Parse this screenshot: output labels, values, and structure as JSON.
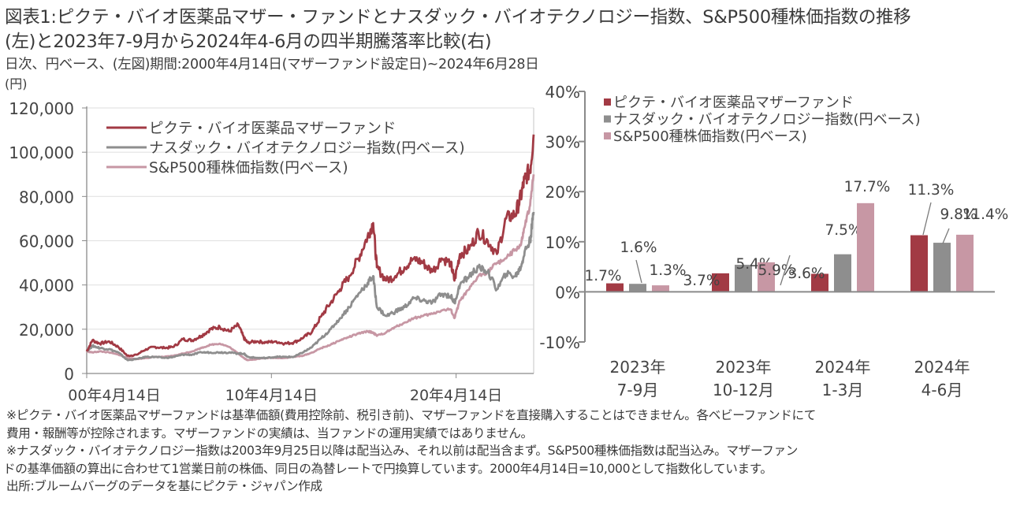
{
  "header": {
    "title_line1": "図表1:ピクテ・バイオ医薬品マザー・ファンドとナスダック・バイオテクノロジー指数、S&P500種株価指数の推移",
    "title_line2": "(左)と2023年7-9月から2024年4-6月の四半期騰落率比較(右)",
    "subtitle": "日次、円ベース、(左図)期間:2000年4月14日(マザーファンド設定日)~2024年6月28日",
    "left_unit": "(円)"
  },
  "colors": {
    "fund": "#a23a44",
    "nasdaq_bio": "#8e8e8e",
    "sp500": "#c797a4",
    "axis": "#8a8a8a",
    "grid": "#e3e3e3"
  },
  "chart_data": [
    {
      "type": "line",
      "title": "",
      "xlabel": "",
      "ylabel": "(円)",
      "ylim": [
        0,
        120000
      ],
      "yticks": [
        0,
        20000,
        40000,
        60000,
        80000,
        100000,
        120000
      ],
      "ytick_labels": [
        "0",
        "20,000",
        "40,000",
        "60,000",
        "80,000",
        "100,000",
        "120,000"
      ],
      "xlim": [
        2000.29,
        2024.49
      ],
      "xticks": [
        2000.29,
        2010.29,
        2020.29
      ],
      "xtick_labels": [
        "00年4月14日",
        "10年4月14日",
        "20年4月14日"
      ],
      "grid": true,
      "legend_position": "top-left",
      "x": [
        2000.29,
        2000.6,
        2001.0,
        2001.5,
        2002.0,
        2002.5,
        2003.0,
        2003.5,
        2004.0,
        2004.5,
        2005.0,
        2005.5,
        2006.0,
        2006.5,
        2007.0,
        2007.5,
        2008.0,
        2008.5,
        2008.8,
        2009.0,
        2009.5,
        2010.0,
        2010.5,
        2011.0,
        2011.5,
        2012.0,
        2012.5,
        2013.0,
        2013.5,
        2014.0,
        2014.5,
        2015.0,
        2015.5,
        2015.8,
        2016.0,
        2016.5,
        2017.0,
        2017.5,
        2018.0,
        2018.5,
        2019.0,
        2019.5,
        2020.0,
        2020.2,
        2020.5,
        2021.0,
        2021.5,
        2022.0,
        2022.5,
        2023.0,
        2023.5,
        2023.8,
        2024.0,
        2024.3,
        2024.49
      ],
      "series": [
        {
          "name": "ピクテ・バイオ医薬品マザーファンド",
          "color": "#a23a44",
          "values": [
            10000,
            15000,
            13500,
            14500,
            12000,
            8000,
            8500,
            11000,
            12000,
            11500,
            12000,
            15500,
            15000,
            17000,
            20000,
            21000,
            19000,
            22000,
            16000,
            14000,
            14500,
            14000,
            14500,
            13500,
            14000,
            16000,
            19000,
            26000,
            32000,
            38000,
            44000,
            52000,
            62000,
            68000,
            48000,
            42000,
            44000,
            48000,
            52000,
            50000,
            46000,
            52000,
            50000,
            42000,
            54000,
            56000,
            64000,
            60000,
            54000,
            70000,
            72000,
            80000,
            88000,
            92000,
            108000
          ]
        },
        {
          "name": "ナスダック・バイオテクノロジー指数(円ベース)",
          "color": "#8e8e8e",
          "values": [
            10000,
            12500,
            11500,
            11000,
            9500,
            6000,
            6500,
            7500,
            7500,
            7000,
            7500,
            8500,
            8500,
            9500,
            9500,
            9500,
            9500,
            9000,
            9000,
            7500,
            7000,
            7000,
            7500,
            7500,
            7500,
            9500,
            12000,
            16000,
            20000,
            25000,
            30000,
            36000,
            41000,
            44000,
            30000,
            26000,
            28000,
            30000,
            34000,
            33000,
            32000,
            36000,
            35000,
            32000,
            40000,
            44000,
            48000,
            46000,
            38000,
            45000,
            44000,
            48000,
            55000,
            60000,
            73000
          ]
        },
        {
          "name": "S&P500種株価指数(円ベース)",
          "color": "#c797a4",
          "values": [
            10000,
            9500,
            10000,
            9500,
            8500,
            7000,
            6500,
            7000,
            7500,
            7500,
            8000,
            9000,
            10000,
            11500,
            13000,
            13500,
            12000,
            9000,
            7000,
            6000,
            6500,
            7000,
            7000,
            7000,
            7500,
            8000,
            9500,
            11500,
            13000,
            15000,
            16500,
            18000,
            19000,
            18500,
            17000,
            18500,
            21000,
            23000,
            25000,
            26000,
            27000,
            28500,
            29000,
            25000,
            33000,
            38000,
            44000,
            46000,
            50000,
            52000,
            56000,
            58000,
            66000,
            76000,
            90000
          ]
        }
      ]
    },
    {
      "type": "bar",
      "title": "",
      "xlabel": "",
      "ylabel": "",
      "ylim": [
        -10,
        40
      ],
      "yticks": [
        -10,
        0,
        10,
        20,
        30,
        40
      ],
      "ytick_labels": [
        "-10%",
        "0%",
        "10%",
        "20%",
        "30%",
        "40%"
      ],
      "categories": [
        "2023年\n7-9月",
        "2023年\n10-12月",
        "2024年\n1-3月",
        "2024年\n4-6月"
      ],
      "category_lines": [
        [
          "2023年",
          "7-9月"
        ],
        [
          "2023年",
          "10-12月"
        ],
        [
          "2024年",
          "1-3月"
        ],
        [
          "2024年",
          "4-6月"
        ]
      ],
      "grid": false,
      "legend_position": "top-left",
      "series": [
        {
          "name": "ピクテ・バイオ医薬品マザーファンド",
          "color": "#a23a44",
          "values": [
            1.7,
            3.7,
            3.6,
            11.3
          ],
          "labels": [
            "1.7%",
            "3.7%",
            "3.6%",
            "11.3%"
          ]
        },
        {
          "name": "ナスダック・バイオテクノロジー指数(円ベース)",
          "color": "#8e8e8e",
          "values": [
            1.6,
            5.4,
            7.5,
            9.8
          ],
          "labels": [
            "1.6%",
            "5.4%",
            "7.5%",
            "9.8%"
          ]
        },
        {
          "name": "S&P500種株価指数(円ベース)",
          "color": "#c797a4",
          "values": [
            1.3,
            5.9,
            17.7,
            11.4
          ],
          "labels": [
            "1.3%",
            "5.9%",
            "17.7%",
            "11.4%"
          ]
        }
      ]
    }
  ],
  "notes": [
    "※ピクテ・バイオ医薬品マザーファンドは基準価額(費用控除前、税引き前)、マザーファンドを直接購入することはできません。各ベビーファンドにて",
    "費用・報酬等が控除されます。マザーファンドの実績は、当ファンドの運用実績ではありません。",
    "※ナスダック・バイオテクノロジー指数は2003年9月25日以降は配当込み、それ以前は配当含まず。S&P500種株価指数は配当込み。マザーファン",
    "ドの基準価額の算出に合わせて1営業日前の株価、同日の為替レートで円換算しています。2000年4月14日=10,000として指数化しています。",
    "出所:ブルームバーグのデータを基にピクテ・ジャパン作成"
  ]
}
